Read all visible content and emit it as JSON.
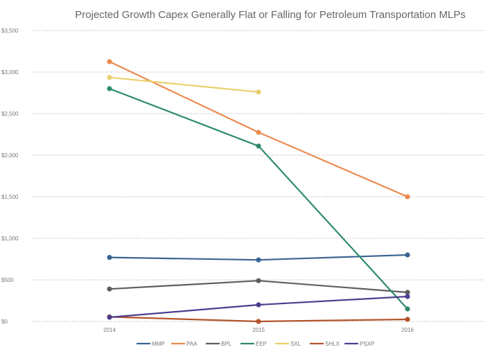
{
  "chart_data": {
    "type": "line",
    "title": "Projected Growth Capex Generally Flat or Falling for Petroleum Transportation MLPs",
    "xlabel": "",
    "ylabel": "",
    "x": [
      "2014",
      "2015",
      "2016"
    ],
    "ylim": [
      0,
      3500
    ],
    "yticks": [
      0,
      500,
      1000,
      1500,
      2000,
      2500,
      3000,
      3500
    ],
    "ytick_labels": [
      "$0",
      "$500",
      "$1,000",
      "$1,500",
      "$2,000",
      "$2,500",
      "$3,000",
      "$3,500"
    ],
    "grid": true,
    "legend_position": "bottom",
    "series": [
      {
        "name": "MMP",
        "color": "#3a6491",
        "values": [
          770,
          740,
          800
        ]
      },
      {
        "name": "PAA",
        "color": "#e98a4f",
        "values": [
          3125,
          2275,
          1500
        ]
      },
      {
        "name": "BPL",
        "color": "#5e5e5e",
        "values": [
          390,
          490,
          350
        ]
      },
      {
        "name": "EEP",
        "color": "#2e8a6e",
        "values": [
          2800,
          2110,
          150
        ]
      },
      {
        "name": "SXL",
        "color": "#ead06a",
        "values": [
          2935,
          2760,
          null
        ]
      },
      {
        "name": "SHLX",
        "color": "#b5532a",
        "values": [
          55,
          0,
          25
        ]
      },
      {
        "name": "PSXP",
        "color": "#4b3f8f",
        "values": [
          50,
          200,
          300
        ]
      }
    ]
  }
}
